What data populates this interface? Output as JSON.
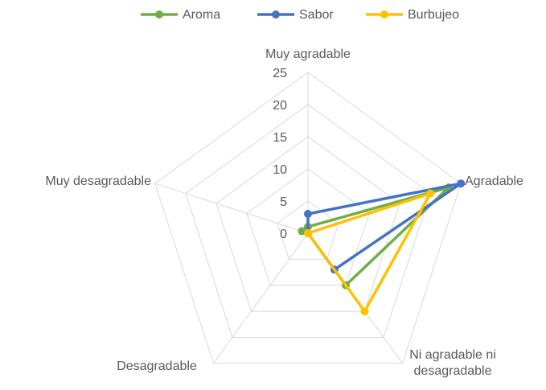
{
  "chart_data": {
    "type": "radar",
    "categories": [
      "Muy agradable",
      "Agradable",
      "Ni agradable ni desagradable",
      "Desagradable",
      "Muy desagradable"
    ],
    "series": [
      {
        "name": "Aroma",
        "color": "#70ad47",
        "values": [
          1,
          23,
          10,
          0,
          1
        ]
      },
      {
        "name": "Sabor",
        "color": "#4472c4",
        "values": [
          3,
          25,
          7,
          0,
          0
        ]
      },
      {
        "name": "Burbujeo",
        "color": "#ffc000",
        "values": [
          0,
          20,
          15,
          0,
          0
        ]
      }
    ],
    "ylim": [
      0,
      25
    ],
    "yticks": [
      0,
      5,
      10,
      15,
      20,
      25
    ],
    "grid": true,
    "legend": "top"
  }
}
